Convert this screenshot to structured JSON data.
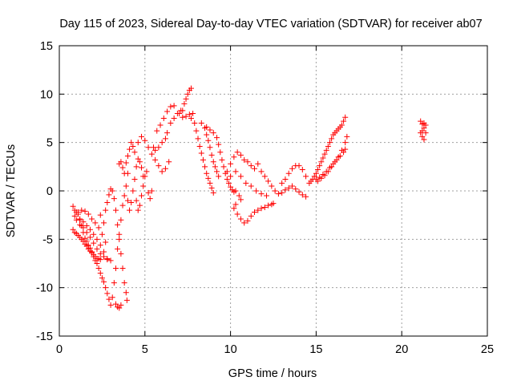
{
  "chart_data": {
    "type": "scatter",
    "title": "Day 115 of 2023, Sidereal Day-to-day VTEC variation (SDTVAR) for receiver ab07",
    "xlabel": "GPS time / hours",
    "ylabel": "SDTVAR / TECUs",
    "xlim": [
      0,
      25
    ],
    "ylim": [
      -15,
      15
    ],
    "xticks": [
      "0",
      "5",
      "10",
      "15",
      "20",
      "25"
    ],
    "yticks": [
      "-15",
      "-10",
      "-5",
      "0",
      "5",
      "10",
      "15"
    ],
    "grid": true,
    "legend": "none",
    "marker": "+",
    "marker_color": "#ff0000",
    "series": [
      {
        "points": [
          [
            0.8,
            -1.6
          ],
          [
            0.9,
            -2.0
          ],
          [
            1.0,
            -2.2
          ],
          [
            1.1,
            -2.4
          ],
          [
            1.2,
            -2.9
          ],
          [
            1.3,
            -3.6
          ],
          [
            1.4,
            -4.3
          ],
          [
            1.5,
            -4.9
          ],
          [
            1.6,
            -5.2
          ],
          [
            1.7,
            -5.6
          ],
          [
            1.8,
            -5.9
          ],
          [
            1.9,
            -6.3
          ],
          [
            2.0,
            -6.8
          ],
          [
            2.1,
            -7.2
          ],
          [
            2.2,
            -7.5
          ],
          [
            2.3,
            -8.0
          ],
          [
            2.4,
            -8.5
          ],
          [
            2.5,
            -9.0
          ],
          [
            2.6,
            -9.4
          ],
          [
            2.7,
            -10.0
          ],
          [
            2.8,
            -10.6
          ],
          [
            2.9,
            -11.2
          ],
          [
            3.0,
            -11.8
          ],
          [
            0.8,
            -4.0
          ],
          [
            0.9,
            -4.3
          ],
          [
            1.0,
            -4.4
          ],
          [
            1.1,
            -4.6
          ],
          [
            1.2,
            -4.8
          ],
          [
            1.3,
            -5.0
          ],
          [
            1.4,
            -5.2
          ],
          [
            1.5,
            -5.5
          ],
          [
            1.6,
            -5.7
          ],
          [
            1.7,
            -6.0
          ],
          [
            1.8,
            -6.2
          ],
          [
            1.9,
            -6.4
          ],
          [
            2.0,
            -6.6
          ],
          [
            2.1,
            -6.8
          ],
          [
            2.2,
            -7.0
          ],
          [
            2.3,
            -7.0
          ],
          [
            2.4,
            -7.1
          ],
          [
            0.9,
            -2.6
          ],
          [
            1.1,
            -2.2
          ],
          [
            1.3,
            -2.0
          ],
          [
            1.5,
            -2.1
          ],
          [
            1.7,
            -2.4
          ],
          [
            1.9,
            -2.9
          ],
          [
            2.1,
            -3.3
          ],
          [
            2.3,
            -3.8
          ],
          [
            2.5,
            -4.5
          ],
          [
            2.7,
            -5.3
          ],
          [
            1.0,
            -3.0
          ],
          [
            1.2,
            -3.0
          ],
          [
            1.4,
            -3.2
          ],
          [
            1.6,
            -3.6
          ],
          [
            1.8,
            -4.0
          ],
          [
            2.0,
            -4.5
          ],
          [
            2.2,
            -5.0
          ],
          [
            2.4,
            -5.6
          ],
          [
            2.6,
            -6.3
          ],
          [
            2.8,
            -7.1
          ],
          [
            1.2,
            -3.5
          ],
          [
            1.4,
            -3.8
          ],
          [
            1.6,
            -4.3
          ],
          [
            1.8,
            -4.8
          ],
          [
            2.0,
            -5.4
          ],
          [
            2.2,
            -6.0
          ],
          [
            2.4,
            -6.5
          ],
          [
            2.6,
            -6.8
          ],
          [
            2.8,
            -7.0
          ],
          [
            3.0,
            -7.2
          ],
          [
            2.4,
            -2.5
          ],
          [
            2.6,
            -3.3
          ],
          [
            2.7,
            -2.0
          ],
          [
            2.8,
            -1.2
          ],
          [
            2.9,
            -0.4
          ],
          [
            3.0,
            0.2
          ],
          [
            3.1,
            0.0
          ],
          [
            3.2,
            -0.8
          ],
          [
            3.3,
            -2.0
          ],
          [
            3.4,
            -3.5
          ],
          [
            3.5,
            -5.0
          ],
          [
            3.6,
            -6.5
          ],
          [
            3.7,
            -8.0
          ],
          [
            3.8,
            -9.5
          ],
          [
            3.9,
            -10.5
          ],
          [
            3.95,
            -11.3
          ],
          [
            3.4,
            -12.0
          ],
          [
            3.5,
            -12.1
          ],
          [
            3.6,
            -11.8
          ],
          [
            3.3,
            -11.7
          ],
          [
            3.1,
            -11.0
          ],
          [
            3.2,
            -9.5
          ],
          [
            3.3,
            -8.0
          ],
          [
            3.4,
            -6.0
          ],
          [
            3.5,
            -4.5
          ],
          [
            3.6,
            -3.0
          ],
          [
            3.7,
            -1.5
          ],
          [
            3.8,
            -0.5
          ],
          [
            3.9,
            0.5
          ],
          [
            4.0,
            1.8
          ],
          [
            3.5,
            2.8
          ],
          [
            3.6,
            3.0
          ],
          [
            3.7,
            2.4
          ],
          [
            3.8,
            1.8
          ],
          [
            3.9,
            2.9
          ],
          [
            4.0,
            3.6
          ],
          [
            4.1,
            4.3
          ],
          [
            4.2,
            5.0
          ],
          [
            4.3,
            4.6
          ],
          [
            4.4,
            4.0
          ],
          [
            4.0,
            -1.0
          ],
          [
            4.1,
            -2.0
          ],
          [
            4.2,
            -1.2
          ],
          [
            4.3,
            0.0
          ],
          [
            4.4,
            1.2
          ],
          [
            4.5,
            2.5
          ],
          [
            4.6,
            3.3
          ],
          [
            4.7,
            3.0
          ],
          [
            4.8,
            2.4
          ],
          [
            4.9,
            1.5
          ],
          [
            4.5,
            -1.0
          ],
          [
            4.6,
            -2.0
          ],
          [
            4.7,
            -1.5
          ],
          [
            4.8,
            -0.5
          ],
          [
            4.9,
            0.5
          ],
          [
            5.0,
            1.5
          ],
          [
            5.1,
            2.0
          ],
          [
            5.2,
            -0.2
          ],
          [
            5.3,
            -0.8
          ],
          [
            5.4,
            0.0
          ],
          [
            4.6,
            5.0
          ],
          [
            4.8,
            5.6
          ],
          [
            5.0,
            5.2
          ],
          [
            5.2,
            4.5
          ],
          [
            5.4,
            3.8
          ],
          [
            5.6,
            3.2
          ],
          [
            5.8,
            2.6
          ],
          [
            6.0,
            2.0
          ],
          [
            6.2,
            2.3
          ],
          [
            6.4,
            3.0
          ],
          [
            5.5,
            4.5
          ],
          [
            5.6,
            4.2
          ],
          [
            5.8,
            4.5
          ],
          [
            6.0,
            5.0
          ],
          [
            6.2,
            5.4
          ],
          [
            6.3,
            6.0
          ],
          [
            6.5,
            7.0
          ],
          [
            6.7,
            7.5
          ],
          [
            6.9,
            8.0
          ],
          [
            7.1,
            8.3
          ],
          [
            5.7,
            6.2
          ],
          [
            5.9,
            6.8
          ],
          [
            6.1,
            7.5
          ],
          [
            6.3,
            8.2
          ],
          [
            6.5,
            8.7
          ],
          [
            6.7,
            8.8
          ],
          [
            7.0,
            8.0
          ],
          [
            7.2,
            7.6
          ],
          [
            7.4,
            7.7
          ],
          [
            7.6,
            7.9
          ],
          [
            7.8,
            8.0
          ],
          [
            7.4,
            9.5
          ],
          [
            7.5,
            10.0
          ],
          [
            7.6,
            10.4
          ],
          [
            7.7,
            10.6
          ],
          [
            7.3,
            9.0
          ],
          [
            7.2,
            8.3
          ],
          [
            7.7,
            7.5
          ],
          [
            7.9,
            7.0
          ],
          [
            8.0,
            6.2
          ],
          [
            8.1,
            5.4
          ],
          [
            8.2,
            4.6
          ],
          [
            8.3,
            3.9
          ],
          [
            8.4,
            3.2
          ],
          [
            8.5,
            2.5
          ],
          [
            8.6,
            1.8
          ],
          [
            8.7,
            1.3
          ],
          [
            8.8,
            0.8
          ],
          [
            8.9,
            0.3
          ],
          [
            9.0,
            -0.2
          ],
          [
            8.3,
            7.0
          ],
          [
            8.5,
            6.5
          ],
          [
            8.6,
            5.8
          ],
          [
            8.7,
            5.2
          ],
          [
            8.8,
            4.5
          ],
          [
            8.9,
            3.7
          ],
          [
            9.0,
            3.0
          ],
          [
            9.1,
            2.5
          ],
          [
            9.2,
            2.0
          ],
          [
            9.3,
            1.5
          ],
          [
            8.6,
            6.6
          ],
          [
            8.8,
            6.3
          ],
          [
            9.0,
            6.0
          ],
          [
            9.2,
            5.5
          ],
          [
            9.3,
            4.8
          ],
          [
            9.4,
            4.0
          ],
          [
            9.5,
            3.2
          ],
          [
            9.6,
            2.5
          ],
          [
            9.7,
            1.8
          ],
          [
            9.8,
            1.2
          ],
          [
            9.9,
            0.8
          ],
          [
            10.0,
            0.4
          ],
          [
            10.1,
            0.1
          ],
          [
            10.2,
            -0.1
          ],
          [
            10.3,
            0.0
          ],
          [
            10.5,
            -0.5
          ],
          [
            10.6,
            -0.9
          ],
          [
            10.3,
            -1.4
          ],
          [
            10.2,
            -1.8
          ],
          [
            10.4,
            -2.4
          ],
          [
            10.6,
            -2.9
          ],
          [
            10.8,
            -3.3
          ],
          [
            11.0,
            -3.1
          ],
          [
            11.2,
            -2.6
          ],
          [
            11.4,
            -2.2
          ],
          [
            11.6,
            -2.0
          ],
          [
            11.8,
            -1.8
          ],
          [
            12.0,
            -1.7
          ],
          [
            12.2,
            -1.5
          ],
          [
            12.4,
            -1.4
          ],
          [
            12.5,
            -1.3
          ],
          [
            9.8,
            2.0
          ],
          [
            10.0,
            2.8
          ],
          [
            10.2,
            3.5
          ],
          [
            10.4,
            4.0
          ],
          [
            10.6,
            3.7
          ],
          [
            10.8,
            3.2
          ],
          [
            11.0,
            3.0
          ],
          [
            11.2,
            2.6
          ],
          [
            11.4,
            2.3
          ],
          [
            11.6,
            2.8
          ],
          [
            11.8,
            2.0
          ],
          [
            12.0,
            1.5
          ],
          [
            12.2,
            1.0
          ],
          [
            12.4,
            0.5
          ],
          [
            12.6,
            0.0
          ],
          [
            12.8,
            -0.3
          ],
          [
            13.0,
            -0.2
          ],
          [
            13.2,
            0.1
          ],
          [
            13.4,
            0.3
          ],
          [
            13.6,
            0.5
          ],
          [
            13.8,
            0.2
          ],
          [
            14.0,
            -0.1
          ],
          [
            14.2,
            -0.4
          ],
          [
            14.4,
            -0.6
          ],
          [
            13.0,
            0.8
          ],
          [
            13.2,
            1.2
          ],
          [
            13.4,
            1.8
          ],
          [
            13.6,
            2.3
          ],
          [
            13.8,
            2.6
          ],
          [
            14.0,
            2.6
          ],
          [
            14.2,
            2.2
          ],
          [
            14.4,
            1.5
          ],
          [
            10.0,
            1.5
          ],
          [
            10.3,
            2.0
          ],
          [
            10.6,
            1.5
          ],
          [
            10.9,
            0.8
          ],
          [
            11.2,
            0.5
          ],
          [
            11.5,
            0.0
          ],
          [
            11.8,
            -0.3
          ],
          [
            12.1,
            -0.5
          ],
          [
            14.6,
            0.8
          ],
          [
            14.7,
            1.0
          ],
          [
            14.8,
            1.2
          ],
          [
            14.9,
            1.5
          ],
          [
            15.0,
            1.8
          ],
          [
            15.1,
            2.2
          ],
          [
            15.2,
            2.6
          ],
          [
            15.3,
            3.0
          ],
          [
            15.4,
            3.4
          ],
          [
            15.5,
            3.8
          ],
          [
            15.6,
            4.2
          ],
          [
            15.7,
            4.6
          ],
          [
            15.8,
            5.0
          ],
          [
            15.9,
            5.4
          ],
          [
            16.0,
            5.8
          ],
          [
            16.1,
            6.0
          ],
          [
            16.2,
            6.2
          ],
          [
            16.3,
            6.4
          ],
          [
            16.4,
            6.6
          ],
          [
            16.5,
            6.8
          ],
          [
            16.6,
            7.2
          ],
          [
            16.7,
            7.6
          ],
          [
            15.0,
            1.2
          ],
          [
            15.2,
            1.4
          ],
          [
            15.4,
            1.7
          ],
          [
            15.6,
            2.0
          ],
          [
            15.8,
            2.4
          ],
          [
            16.0,
            2.8
          ],
          [
            16.2,
            3.2
          ],
          [
            16.4,
            3.6
          ],
          [
            16.6,
            4.0
          ],
          [
            16.7,
            4.3
          ],
          [
            15.1,
            1.0
          ],
          [
            15.3,
            1.3
          ],
          [
            15.5,
            1.6
          ],
          [
            15.7,
            2.0
          ],
          [
            15.9,
            2.5
          ],
          [
            16.1,
            3.0
          ],
          [
            16.3,
            3.5
          ],
          [
            16.5,
            4.2
          ],
          [
            16.7,
            5.0
          ],
          [
            16.8,
            5.6
          ],
          [
            21.1,
            7.2
          ],
          [
            21.2,
            6.9
          ],
          [
            21.3,
            6.5
          ],
          [
            21.4,
            6.0
          ],
          [
            21.2,
            5.6
          ],
          [
            21.3,
            5.3
          ],
          [
            21.1,
            6.0
          ],
          [
            21.3,
            7.0
          ],
          [
            21.4,
            6.8
          ],
          [
            21.2,
            6.2
          ]
        ]
      }
    ]
  }
}
